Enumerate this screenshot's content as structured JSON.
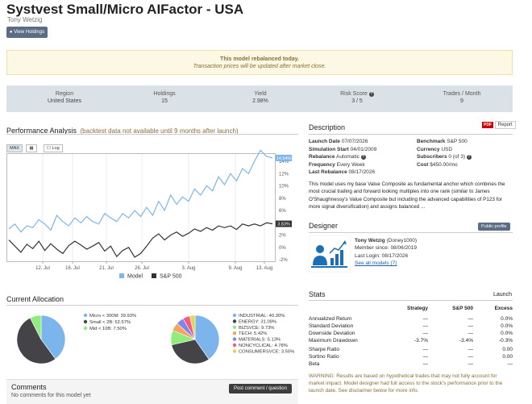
{
  "header": {
    "title": "Systvest Small/Micro AIFactor - USA",
    "author": "Tony Wetzig",
    "view_holdings": "View Holdings"
  },
  "notice": {
    "line1": "This model rebalanced today.",
    "line2": "Transaction prices will be updated after market close."
  },
  "stats": [
    {
      "label": "Region",
      "value": "United States"
    },
    {
      "label": "Holdings",
      "value": "15"
    },
    {
      "label": "Yield",
      "value": "2.98%"
    },
    {
      "label": "Risk Score",
      "value": "3 / 5",
      "icon": "question-icon"
    },
    {
      "label": "Trades / Month",
      "value": "9"
    }
  ],
  "performance": {
    "title": "Performance Analysis",
    "note": "(backtest data not available until 9 months after launch)",
    "btn_max": "MAX",
    "btn_log": "Log",
    "legend": [
      {
        "name": "Model",
        "color": "#7cb5ec"
      },
      {
        "name": "S&P 500",
        "color": "#333333"
      }
    ]
  },
  "chart_data": {
    "type": "line",
    "x_tick_labels": [
      "12. Jul",
      "16. Jul",
      "21. Jul",
      "26. Jul",
      "3. Aug",
      "9. Aug",
      "13. Aug"
    ],
    "y_tick_labels": [
      "14%",
      "12%",
      "10%",
      "8%",
      "6%",
      "4%",
      "2%",
      "0%",
      "-2%"
    ],
    "ylim": [
      -2,
      14
    ],
    "series": [
      {
        "name": "Model",
        "color": "#7cb5ec",
        "end_label": "14.54%",
        "values": [
          3,
          3.8,
          2.5,
          3.5,
          3.2,
          4.5,
          3.8,
          2.8,
          5.2,
          4.2,
          3.5,
          4.8,
          4,
          5,
          4.2,
          3.8,
          5.5,
          4.8,
          4.2,
          5.5,
          4.8,
          6,
          5,
          6.5,
          5.2,
          7.5,
          6,
          8.5,
          7,
          8.2,
          7.5,
          9.5,
          8.5,
          10,
          9.2,
          11.5,
          10.2,
          12,
          10.8,
          12.8,
          12,
          14,
          15.8,
          14.8,
          14.54
        ]
      },
      {
        "name": "S&P 500",
        "color": "#333333",
        "end_label": "3.83%",
        "values": [
          1.2,
          0.2,
          -0.8,
          0.5,
          -0.2,
          1,
          -0.5,
          0.6,
          -0.3,
          -1,
          0.3,
          1,
          0.4,
          -0.3,
          0.2,
          0.8,
          -0.6,
          0.2,
          -1.5,
          -0.5,
          0,
          -1.6,
          -1,
          0.2,
          1.5,
          2.2,
          1.2,
          2,
          2.5,
          1.8,
          2.3,
          3,
          2.6,
          3.2,
          2.8,
          3.5,
          3.2,
          3.5,
          2.9,
          3.8,
          3.5,
          3.8,
          3.5,
          4,
          3.83
        ]
      }
    ]
  },
  "allocation": {
    "title": "Current Allocation",
    "size": [
      {
        "label": "Micro < 300M: 39.93%",
        "value": 39.93,
        "color": "#7cb5ec"
      },
      {
        "label": "Small < 2B: 52.57%",
        "value": 52.57,
        "color": "#434348"
      },
      {
        "label": "Mid < 10B: 7.50%",
        "value": 7.5,
        "color": "#90ed7d"
      }
    ],
    "sector": [
      {
        "label": "INDUSTRIAL: 40.30%",
        "value": 40.3,
        "color": "#7cb5ec"
      },
      {
        "label": "ENERGY: 31.09%",
        "value": 31.09,
        "color": "#434348"
      },
      {
        "label": "BIZSVCE: 9.73%",
        "value": 9.73,
        "color": "#90ed7d"
      },
      {
        "label": "TECH: 5.42%",
        "value": 5.42,
        "color": "#f7a35c"
      },
      {
        "label": "MATERIALS: 5.13%",
        "value": 5.13,
        "color": "#8085e9"
      },
      {
        "label": "NONCYCLICAL: 4.78%",
        "value": 4.78,
        "color": "#f15c80"
      },
      {
        "label": "CONSUMERSVCE: 3.55%",
        "value": 3.55,
        "color": "#e4d354"
      }
    ]
  },
  "comments": {
    "title": "Comments",
    "empty": "No comments for this model yet",
    "post_button": "Post comment / question"
  },
  "description": {
    "title": "Description",
    "report_button": "Report",
    "pdf_label": "PDF",
    "left": [
      {
        "k": "Launch Date",
        "v": "07/07/2026"
      },
      {
        "k": "Simulation Start",
        "v": "04/01/2009"
      },
      {
        "k": "Rebalance",
        "v": "Automatic",
        "icon": "question-icon"
      },
      {
        "k": "Frequency",
        "v": "Every Week"
      },
      {
        "k": "Last Rebalance",
        "v": "08/17/2026"
      }
    ],
    "right": [
      {
        "k": "Benchmark",
        "v": "S&P 500"
      },
      {
        "k": "Currency",
        "v": "USD"
      },
      {
        "k": "Subscribers",
        "v": "0 (of 3)",
        "icon": "question-icon"
      },
      {
        "k": "Cost",
        "v": "$450.00/mo"
      }
    ],
    "text": "This model uses my base Value Composite as fundamental anchor which combines the most crucial trailing and forward looking multiples into one rank (similar to James O'Shaughnessy's Value Composite but including the advanced capabilities of P123 for more signal diversification) and assigns balanced ..."
  },
  "designer": {
    "title": "Designer",
    "profile_button": "Public profile",
    "name": "Tony Wetzig",
    "handle": "(Doney1000)",
    "member_since_label": "Member since:",
    "member_since": "08/06/2019",
    "last_login_label": "Last Login:",
    "last_login": "08/17/2026",
    "see_all": "See all models (7)"
  },
  "stats_table": {
    "title": "Stats",
    "launch_label": "Launch",
    "headers": [
      "Strategy",
      "S&P 500",
      "Excess"
    ],
    "rows": [
      {
        "label": "Annualized Return",
        "c": [
          "—",
          "—",
          "0.0%"
        ],
        "neg": [
          false,
          false,
          false
        ]
      },
      {
        "label": "Standard Deviation",
        "c": [
          "—",
          "—",
          "0.0%"
        ],
        "neg": [
          false,
          false,
          false
        ]
      },
      {
        "label": "Downside Deviation",
        "c": [
          "—",
          "—",
          "0.0%"
        ],
        "neg": [
          false,
          false,
          false
        ]
      },
      {
        "label": "Maximum Drawdown",
        "c": [
          "-3.7%",
          "-3.4%",
          "-0.3%"
        ],
        "neg": [
          true,
          true,
          true
        ]
      },
      {
        "label": "Sharpe Ratio",
        "c": [
          "—",
          "—",
          "0.00"
        ],
        "neg": [
          false,
          false,
          false
        ]
      },
      {
        "label": "Sortino Ratio",
        "c": [
          "—",
          "—",
          "0.00"
        ],
        "neg": [
          false,
          false,
          false
        ]
      },
      {
        "label": "Beta",
        "c": [
          "—",
          "—",
          "—"
        ],
        "neg": [
          false,
          false,
          false
        ]
      }
    ],
    "warning": "WARNING: Results are based on hypothetical trades that may not fully account for market impact. Model designer had full access to the stock's performance prior to the launch date. See disclaimer below for more info."
  }
}
